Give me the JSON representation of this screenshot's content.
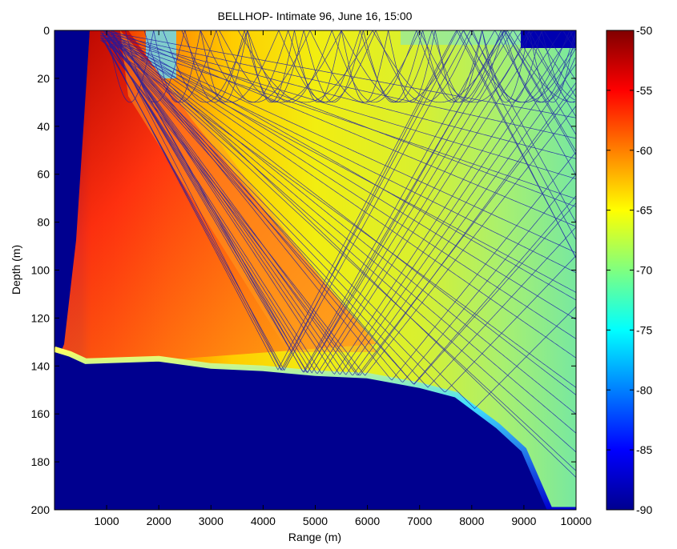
{
  "chart_data": {
    "type": "heatmap",
    "title": "BELLHOP- Intimate 96, June 16, 15:00",
    "xlabel": "Range (m)",
    "ylabel": "Depth (m)",
    "xlim": [
      0,
      10000
    ],
    "ylim": [
      0,
      200
    ],
    "y_reversed": true,
    "x_ticks": [
      1000,
      2000,
      3000,
      4000,
      5000,
      6000,
      7000,
      8000,
      9000,
      10000
    ],
    "y_ticks": [
      0,
      20,
      40,
      60,
      80,
      100,
      120,
      140,
      160,
      180,
      200
    ],
    "colorbar": {
      "min": -90,
      "max": -50,
      "ticks": [
        -50,
        -55,
        -60,
        -65,
        -70,
        -75,
        -80,
        -85,
        -90
      ],
      "colormap": "jet"
    },
    "bottom_profile": {
      "range": [
        0,
        300,
        600,
        2000,
        3000,
        4000,
        5000,
        6000,
        7000,
        7700,
        8500,
        9000,
        9500,
        10000
      ],
      "depth": [
        133,
        135,
        138,
        137,
        140,
        141,
        143,
        144,
        148,
        152,
        165,
        175,
        200,
        200
      ]
    },
    "ray_overlay": {
      "source_range": 1000,
      "source_depth": 0,
      "color": "#1a1aa8"
    }
  }
}
